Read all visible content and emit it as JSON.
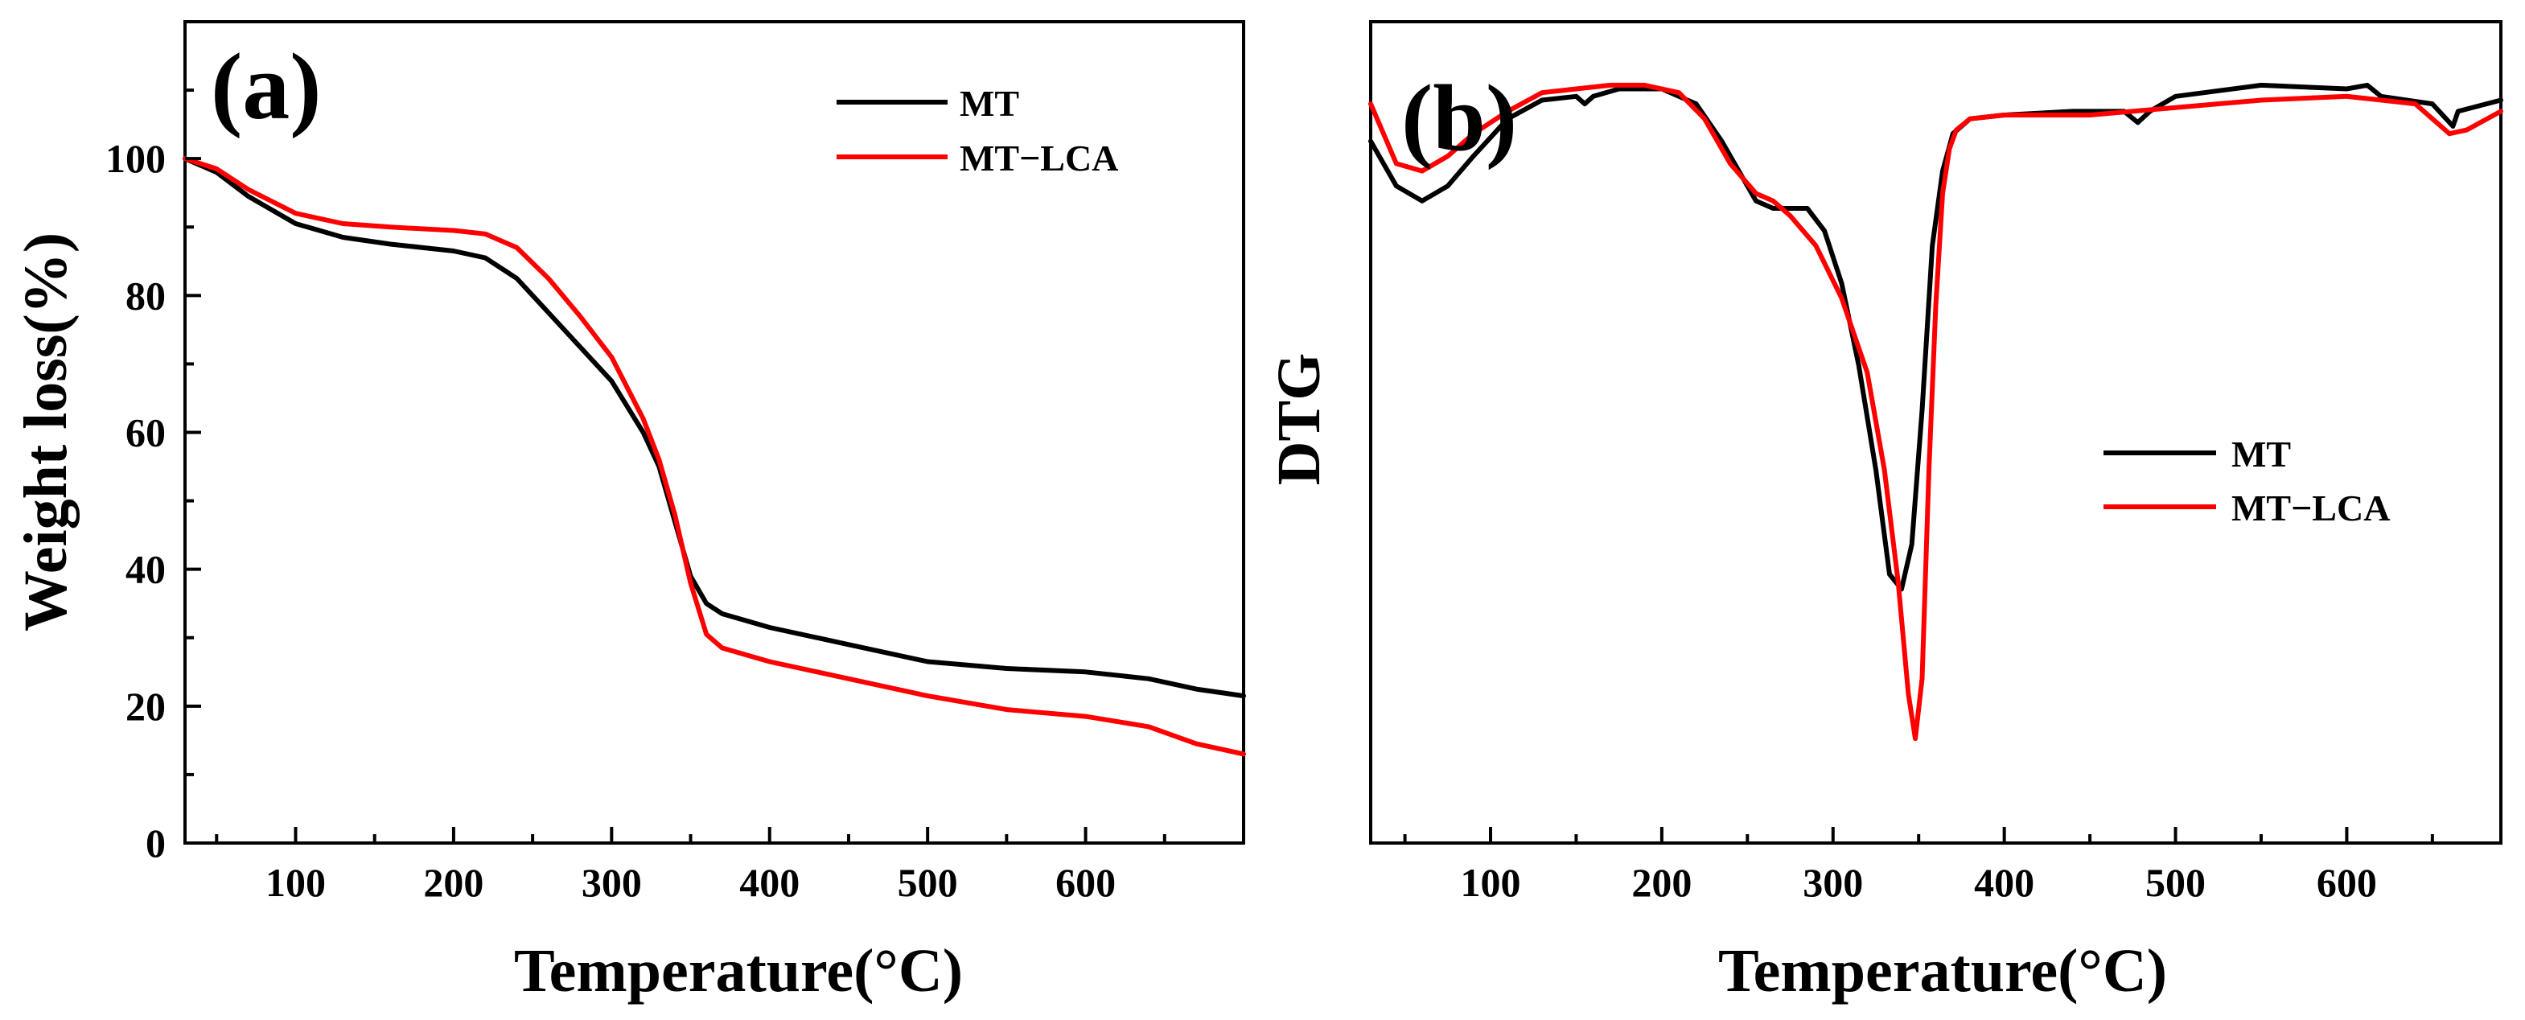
{
  "chart_data": [
    {
      "panel_label": "(a)",
      "type": "line",
      "title": "",
      "xlabel": "Temperature(°C)",
      "ylabel": "Weight loss(%)",
      "xlim": [
        30,
        700
      ],
      "ylim": [
        0,
        120
      ],
      "xticks": [
        100,
        200,
        300,
        400,
        500,
        600
      ],
      "yticks": [
        0,
        20,
        40,
        60,
        80,
        100
      ],
      "legend_position": "top-right",
      "series": [
        {
          "name": "MT",
          "color": "#000000",
          "x": [
            30,
            50,
            70,
            100,
            130,
            160,
            200,
            220,
            240,
            260,
            280,
            300,
            320,
            330,
            340,
            350,
            360,
            370,
            400,
            450,
            500,
            550,
            600,
            640,
            670,
            700
          ],
          "y": [
            100,
            98,
            94.5,
            90.5,
            88.5,
            87.5,
            86.5,
            85.5,
            82.5,
            77.5,
            72.5,
            67.5,
            60,
            55,
            47,
            39,
            35,
            33.5,
            31.5,
            29,
            26.5,
            25.5,
            25,
            24,
            22.5,
            21.5
          ]
        },
        {
          "name": "MT−LCA",
          "color": "#ff0000",
          "x": [
            30,
            50,
            70,
            100,
            130,
            160,
            200,
            220,
            240,
            260,
            280,
            300,
            320,
            330,
            340,
            350,
            360,
            370,
            400,
            450,
            500,
            550,
            600,
            640,
            670,
            700
          ],
          "y": [
            100,
            98.5,
            95.5,
            92,
            90.5,
            90,
            89.5,
            89,
            87,
            82.5,
            77,
            71,
            62,
            56,
            48,
            38,
            30.5,
            28.5,
            26.5,
            24,
            21.5,
            19.5,
            18.5,
            17,
            14.5,
            13
          ]
        }
      ]
    },
    {
      "panel_label": "(b)",
      "type": "line",
      "title": "",
      "xlabel": "Temperature(°C)",
      "ylabel": "DTG",
      "xlim": [
        30,
        690
      ],
      "ylim": [
        -1.0,
        0.1
      ],
      "y_ticks_shown": false,
      "xticks": [
        100,
        200,
        300,
        400,
        500,
        600
      ],
      "legend_position": "center-right",
      "series": [
        {
          "name": "MT",
          "color": "#000000",
          "x": [
            30,
            45,
            60,
            75,
            90,
            110,
            130,
            150,
            155,
            160,
            175,
            200,
            220,
            235,
            245,
            255,
            265,
            275,
            285,
            295,
            305,
            315,
            325,
            333,
            340,
            346,
            352,
            358,
            364,
            370,
            380,
            400,
            440,
            470,
            478,
            485,
            500,
            550,
            600,
            612,
            620,
            650,
            662,
            665,
            690
          ],
          "y": [
            -0.06,
            -0.12,
            -0.14,
            -0.12,
            -0.08,
            -0.03,
            -0.005,
            0.0,
            -0.01,
            0.0,
            0.01,
            0.01,
            -0.01,
            -0.06,
            -0.1,
            -0.14,
            -0.15,
            -0.15,
            -0.15,
            -0.18,
            -0.25,
            -0.36,
            -0.5,
            -0.64,
            -0.66,
            -0.6,
            -0.42,
            -0.2,
            -0.1,
            -0.05,
            -0.03,
            -0.025,
            -0.02,
            -0.02,
            -0.035,
            -0.02,
            0.0,
            0.015,
            0.01,
            0.015,
            0.0,
            -0.01,
            -0.04,
            -0.02,
            -0.005
          ]
        },
        {
          "name": "MT−LCA",
          "color": "#ff0000",
          "x": [
            30,
            45,
            60,
            75,
            90,
            110,
            130,
            150,
            170,
            190,
            210,
            225,
            240,
            255,
            265,
            275,
            290,
            305,
            320,
            330,
            338,
            344,
            348,
            352,
            356,
            360,
            364,
            368,
            372,
            380,
            400,
            450,
            500,
            550,
            600,
            640,
            660,
            670,
            690
          ],
          "y": [
            -0.01,
            -0.09,
            -0.1,
            -0.08,
            -0.05,
            -0.02,
            0.005,
            0.01,
            0.015,
            0.015,
            0.005,
            -0.03,
            -0.09,
            -0.13,
            -0.14,
            -0.16,
            -0.2,
            -0.27,
            -0.37,
            -0.5,
            -0.65,
            -0.8,
            -0.86,
            -0.78,
            -0.5,
            -0.28,
            -0.13,
            -0.07,
            -0.045,
            -0.03,
            -0.025,
            -0.025,
            -0.015,
            -0.005,
            0.0,
            -0.01,
            -0.05,
            -0.045,
            -0.02
          ]
        }
      ]
    }
  ]
}
